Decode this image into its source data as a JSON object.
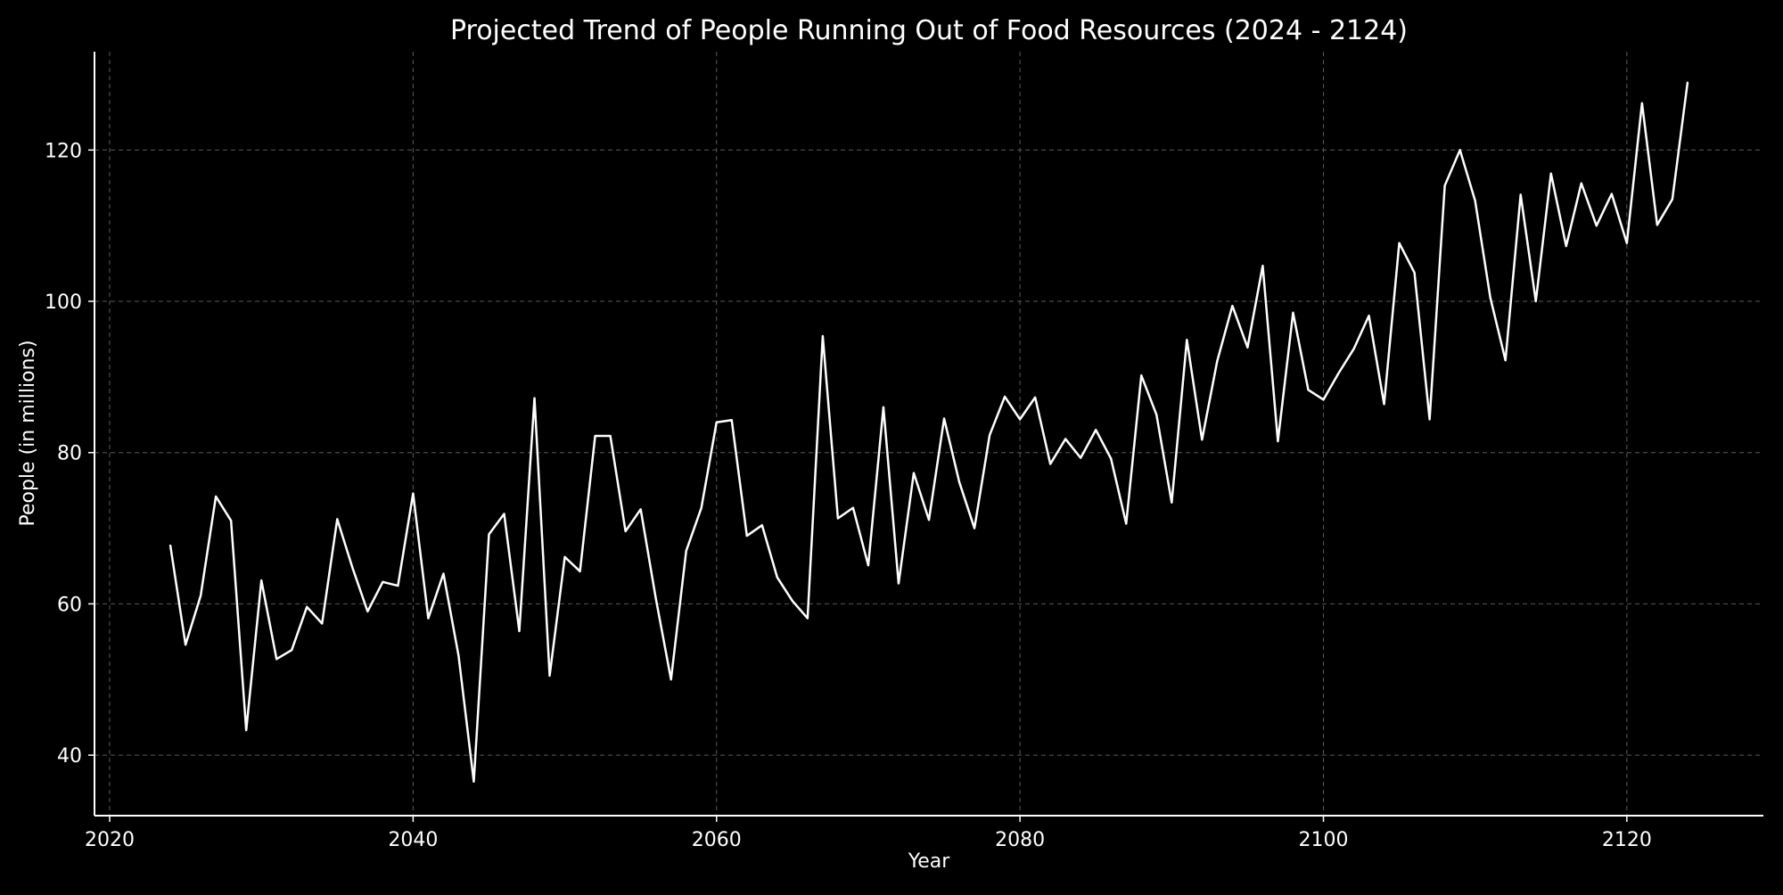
{
  "chart_data": {
    "type": "line",
    "title": "Projected Trend of People Running Out of Food Resources (2024 - 2124)",
    "xlabel": "Year",
    "ylabel": "People (in millions)",
    "xlim": [
      2019,
      2129
    ],
    "ylim": [
      32,
      133
    ],
    "xticks": [
      2020,
      2040,
      2060,
      2080,
      2100,
      2120
    ],
    "yticks": [
      40,
      60,
      80,
      100,
      120
    ],
    "grid": true,
    "background": "#000000",
    "foreground": "#ffffff",
    "line_color": "#ffffff",
    "x": [
      2024,
      2025,
      2026,
      2027,
      2028,
      2029,
      2030,
      2031,
      2032,
      2033,
      2034,
      2035,
      2036,
      2037,
      2038,
      2039,
      2040,
      2041,
      2042,
      2043,
      2044,
      2045,
      2046,
      2047,
      2048,
      2049,
      2050,
      2051,
      2052,
      2053,
      2054,
      2055,
      2056,
      2057,
      2058,
      2059,
      2060,
      2061,
      2062,
      2063,
      2064,
      2065,
      2066,
      2067,
      2068,
      2069,
      2070,
      2071,
      2072,
      2073,
      2074,
      2075,
      2076,
      2077,
      2078,
      2079,
      2080,
      2081,
      2082,
      2083,
      2084,
      2085,
      2086,
      2087,
      2088,
      2089,
      2090,
      2091,
      2092,
      2093,
      2094,
      2095,
      2096,
      2097,
      2098,
      2099,
      2100,
      2101,
      2102,
      2103,
      2104,
      2105,
      2106,
      2107,
      2108,
      2109,
      2110,
      2111,
      2112,
      2113,
      2114,
      2115,
      2116,
      2117,
      2118,
      2119,
      2120,
      2121,
      2122,
      2123,
      2124
    ],
    "series": [
      {
        "values": [
          67.7,
          54.6,
          61.1,
          74.2,
          71.0,
          43.3,
          63.1,
          52.7,
          53.9,
          59.6,
          57.4,
          71.2,
          64.8,
          59.0,
          62.9,
          62.4,
          74.6,
          58.1,
          64.0,
          53.1,
          36.5,
          69.2,
          71.9,
          56.4,
          87.2,
          50.5,
          66.2,
          64.3,
          82.2,
          82.2,
          69.6,
          72.5,
          60.7,
          50.0,
          67.0,
          72.7,
          84.0,
          84.3,
          69.0,
          70.4,
          63.5,
          60.4,
          58.1,
          95.4,
          71.3,
          72.7,
          65.1,
          86.0,
          62.7,
          77.3,
          71.1,
          84.5,
          76.1,
          70.0,
          82.3,
          87.4,
          84.4,
          87.3,
          78.5,
          81.8,
          79.3,
          83.0,
          79.2,
          70.6,
          90.2,
          85.0,
          73.4,
          94.9,
          81.7,
          92.1,
          99.4,
          93.9,
          104.7,
          81.5,
          98.5,
          88.3,
          87.0,
          90.5,
          93.7,
          98.1,
          86.4,
          107.7,
          103.8,
          84.4,
          115.3,
          120.0,
          113.3,
          100.5,
          92.2,
          114.1,
          100.0,
          116.9,
          107.3,
          115.6,
          110.0,
          114.2,
          107.7,
          126.2,
          110.1,
          113.5,
          128.9
        ]
      }
    ]
  }
}
